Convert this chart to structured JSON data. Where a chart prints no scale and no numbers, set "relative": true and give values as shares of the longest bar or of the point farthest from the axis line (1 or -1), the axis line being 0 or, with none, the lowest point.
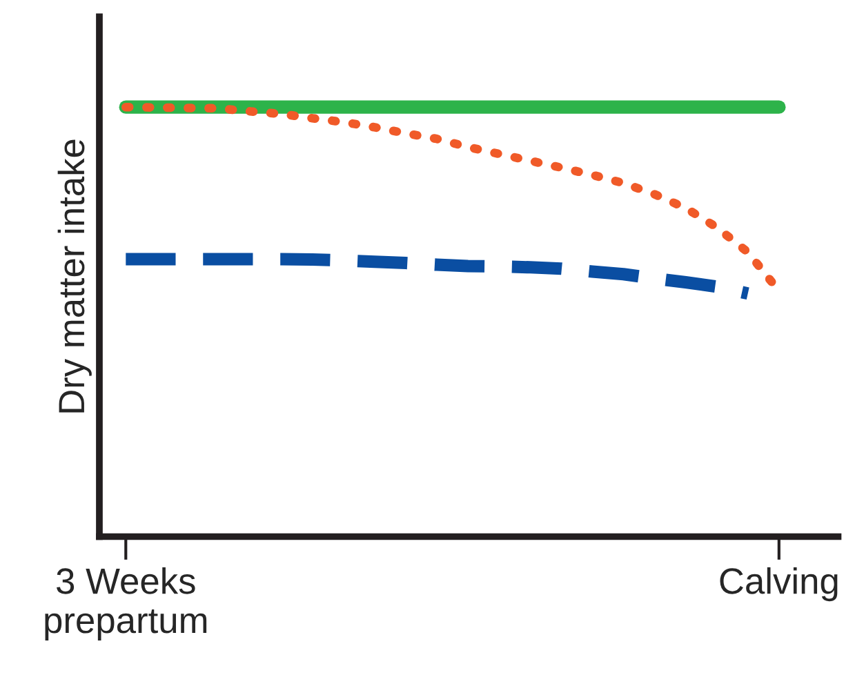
{
  "chart_data": {
    "type": "line",
    "relative": true,
    "ylabel": "Dry matter intake",
    "categories": [
      "3 Weeks\nprepartum",
      null,
      null,
      null,
      null,
      null,
      null,
      null,
      null,
      null,
      null,
      null,
      null,
      null,
      null,
      null,
      null,
      null,
      null,
      null,
      null,
      "Calving"
    ],
    "grid": false,
    "legend": false,
    "marker": "none",
    "series": [
      {
        "color": "#2db34a",
        "line_style": "solid",
        "values": [
          1.0,
          1.0,
          1.0,
          1.0,
          1.0,
          1.0,
          1.0,
          1.0,
          1.0,
          1.0,
          1.0,
          1.0,
          1.0,
          1.0,
          1.0,
          1.0,
          1.0,
          1.0,
          1.0,
          1.0,
          1.0,
          1.0
        ]
      },
      {
        "color": "#f05a28",
        "line_style": "dotted",
        "values": [
          1.0,
          0.999,
          0.998,
          0.997,
          0.99,
          0.984,
          0.974,
          0.965,
          0.953,
          0.939,
          0.926,
          0.907,
          0.891,
          0.875,
          0.859,
          0.842,
          0.823,
          0.797,
          0.765,
          0.72,
          0.662,
          0.572
        ]
      },
      {
        "color": "#0a4ea2",
        "line_style": "dashed",
        "values": [
          0.646,
          0.646,
          0.646,
          0.646,
          0.646,
          0.646,
          0.645,
          0.643,
          0.64,
          0.637,
          0.633,
          0.63,
          0.629,
          0.627,
          0.624,
          0.617,
          0.611,
          0.601,
          0.592,
          0.582,
          0.566,
          null
        ]
      }
    ]
  }
}
